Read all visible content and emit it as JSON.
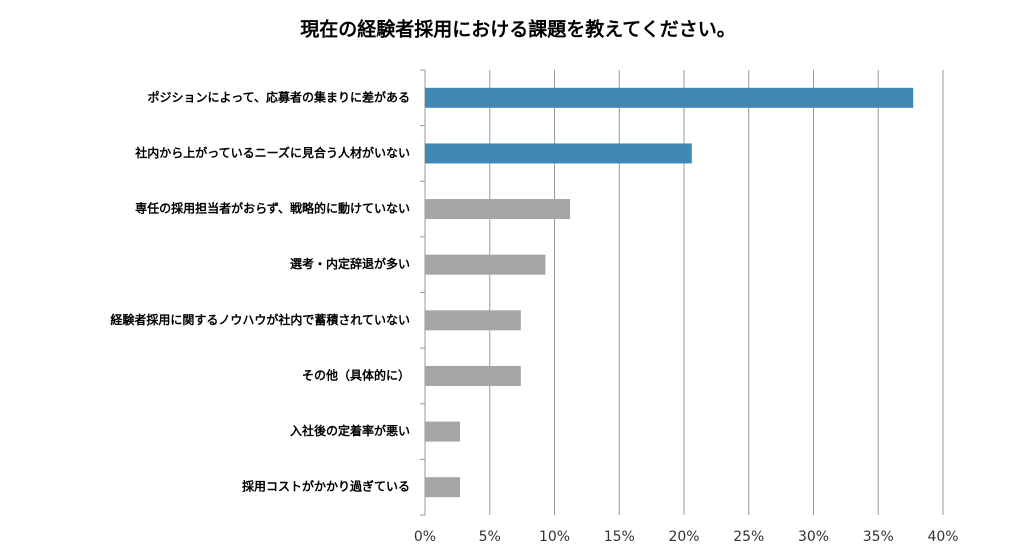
{
  "chart_data": {
    "type": "barh",
    "title": "現在の経験者採用における課題を教えてください。",
    "categories": [
      "ポジションによって、応募者の集まりに差がある",
      "社内から上がっているニーズに見合う人材がいない",
      "専任の採用担当者がおらず、戦略的に動けていない",
      "選考・内定辞退が多い",
      "経験者採用に関するノウハウが社内で蓄積されていない",
      "その他（具体的に）",
      "入社後の定着率が悪い",
      "採用コストがかかり過ぎている"
    ],
    "values": [
      37.7,
      20.6,
      11.2,
      9.3,
      7.4,
      7.4,
      2.7,
      2.7
    ],
    "colors": [
      "#3f88b5",
      "#3f88b5",
      "#a5a5a5",
      "#a5a5a5",
      "#a5a5a5",
      "#a5a5a5",
      "#a5a5a5",
      "#a5a5a5"
    ],
    "xlim": [
      0,
      40
    ],
    "xticks": [
      {
        "value": 0,
        "label": "0%"
      },
      {
        "value": 5,
        "label": "5%"
      },
      {
        "value": 10,
        "label": "10%"
      },
      {
        "value": 15,
        "label": "15%"
      },
      {
        "value": 20,
        "label": "20%"
      },
      {
        "value": 25,
        "label": "25%"
      },
      {
        "value": 30,
        "label": "30%"
      },
      {
        "value": 35,
        "label": "35%"
      },
      {
        "value": 40,
        "label": "40%"
      }
    ],
    "grid": true
  }
}
